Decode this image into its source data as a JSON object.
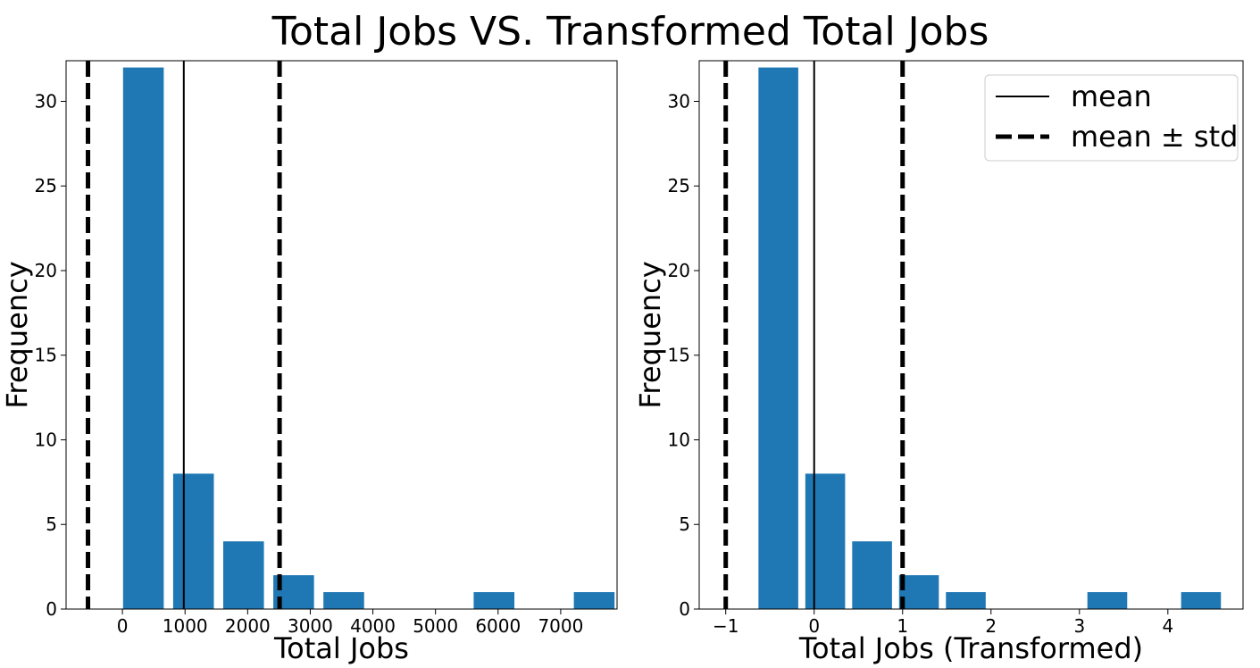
{
  "figure": {
    "title": "Total Jobs VS. Transformed Total Jobs",
    "background": "#ffffff"
  },
  "chart_data": [
    {
      "type": "bar",
      "bar_color": "#1f77b4",
      "xlabel": "Total Jobs",
      "ylabel": "Frequency",
      "xlim": [
        -900,
        7900
      ],
      "ylim": [
        0,
        32.4
      ],
      "xticks": [
        0,
        1000,
        2000,
        3000,
        4000,
        5000,
        6000,
        7000
      ],
      "xtick_labels": [
        "0",
        "1000",
        "2000",
        "3000",
        "4000",
        "5000",
        "6000",
        "7000"
      ],
      "yticks": [
        0,
        5,
        10,
        15,
        20,
        25,
        30
      ],
      "ytick_labels": [
        "0",
        "5",
        "10",
        "15",
        "20",
        "25",
        "30"
      ],
      "bars": [
        {
          "x0": 10,
          "x1": 660,
          "value": 32
        },
        {
          "x0": 810,
          "x1": 1460,
          "value": 8
        },
        {
          "x0": 1610,
          "x1": 2260,
          "value": 4
        },
        {
          "x0": 2410,
          "x1": 3060,
          "value": 2
        },
        {
          "x0": 3210,
          "x1": 3860,
          "value": 1
        },
        {
          "x0": 5610,
          "x1": 6260,
          "value": 1
        },
        {
          "x0": 7210,
          "x1": 7860,
          "value": 1
        }
      ],
      "mean": 980,
      "std_lines": [
        -550,
        2510
      ],
      "grid": false
    },
    {
      "type": "bar",
      "bar_color": "#1f77b4",
      "xlabel": "Total Jobs (Transformed)",
      "ylabel": "Frequency",
      "xlim": [
        -1.3,
        4.85
      ],
      "ylim": [
        0,
        32.4
      ],
      "xticks": [
        -1,
        0,
        1,
        2,
        3,
        4
      ],
      "xtick_labels": [
        "−1",
        "0",
        "1",
        "2",
        "3",
        "4"
      ],
      "yticks": [
        0,
        5,
        10,
        15,
        20,
        25,
        30
      ],
      "yticks_labels_note": "",
      "ytick_labels": [
        "0",
        "5",
        "10",
        "15",
        "20",
        "25",
        "30"
      ],
      "bars": [
        {
          "x0": -0.63,
          "x1": -0.18,
          "value": 32
        },
        {
          "x0": -0.1,
          "x1": 0.35,
          "value": 8
        },
        {
          "x0": 0.43,
          "x1": 0.88,
          "value": 4
        },
        {
          "x0": 0.96,
          "x1": 1.41,
          "value": 2
        },
        {
          "x0": 1.49,
          "x1": 1.94,
          "value": 1
        },
        {
          "x0": 3.09,
          "x1": 3.54,
          "value": 1
        },
        {
          "x0": 4.15,
          "x1": 4.6,
          "value": 1
        }
      ],
      "mean": 0,
      "std_lines": [
        -1,
        1
      ],
      "grid": false,
      "legend": {
        "placement": "top-right",
        "entries": [
          {
            "label": "mean",
            "style": "solid"
          },
          {
            "label": "mean ± std",
            "style": "dashed"
          }
        ]
      }
    }
  ]
}
